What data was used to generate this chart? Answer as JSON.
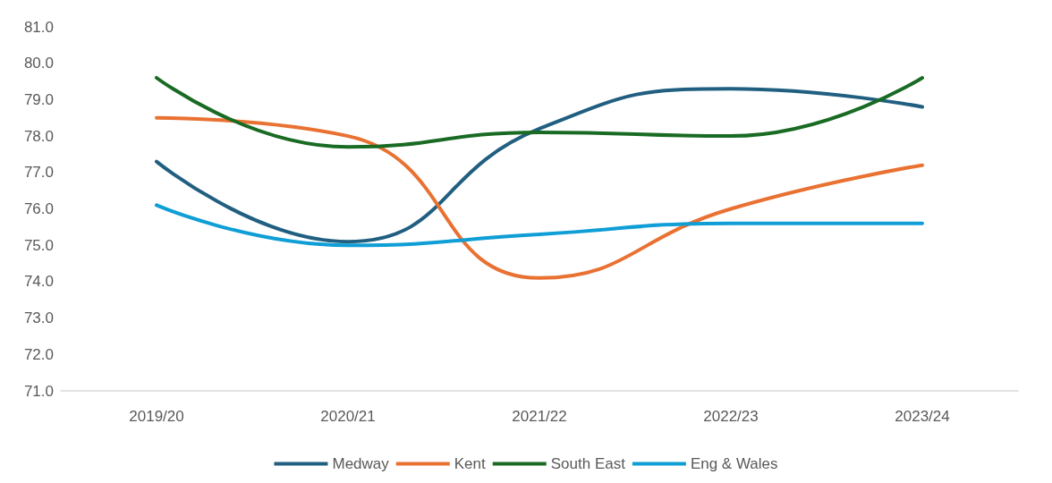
{
  "chart_data": {
    "type": "line",
    "categories": [
      "2019/20",
      "2020/21",
      "2021/22",
      "2022/23",
      "2023/24"
    ],
    "series": [
      {
        "name": "Medway",
        "color": "#215f81",
        "values": [
          77.3,
          75.1,
          78.2,
          79.3,
          78.8
        ]
      },
      {
        "name": "Kent",
        "color": "#e97132",
        "values": [
          78.5,
          78.0,
          74.1,
          76.0,
          77.2
        ]
      },
      {
        "name": "South East",
        "color": "#196b24",
        "values": [
          79.6,
          77.7,
          78.1,
          78.0,
          79.6
        ]
      },
      {
        "name": "Eng & Wales",
        "color": "#0f9ed5",
        "values": [
          76.1,
          75.0,
          75.3,
          75.6,
          75.6
        ]
      }
    ],
    "ylim": [
      71,
      81
    ],
    "yticks": [
      {
        "value": 71,
        "label": "71.0"
      },
      {
        "value": 72,
        "label": "72.0"
      },
      {
        "value": 73,
        "label": "73.0"
      },
      {
        "value": 74,
        "label": "74.0"
      },
      {
        "value": 75,
        "label": "75.0"
      },
      {
        "value": 76,
        "label": "76.0"
      },
      {
        "value": 77,
        "label": "77.0"
      },
      {
        "value": 78,
        "label": "78.0"
      },
      {
        "value": 79,
        "label": "79.0"
      },
      {
        "value": 80,
        "label": "80.0"
      },
      {
        "value": 81,
        "label": "81.0"
      }
    ],
    "grid": false,
    "legend": "bottom",
    "marker": "none",
    "line_style": "solid"
  }
}
